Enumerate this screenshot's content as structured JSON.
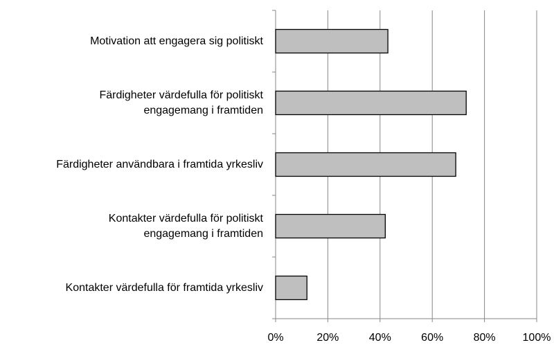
{
  "chart_data": {
    "type": "barh",
    "categories": [
      "Motivation att engagera sig politiskt",
      "Färdigheter värdefulla för politiskt\nengagemang i framtiden",
      "Färdigheter användbara i framtida yrkesliv",
      "Kontakter värdefulla för politiskt\nengagemang i framtiden",
      "Kontakter värdefulla för framtida yrkesliv"
    ],
    "values": [
      43,
      73,
      69,
      42,
      12
    ],
    "color": "#bfbfbf",
    "xlim": [
      0,
      100
    ],
    "xticks": [
      {
        "value": 0,
        "label": "0%"
      },
      {
        "value": 20,
        "label": "20%"
      },
      {
        "value": 40,
        "label": "40%"
      },
      {
        "value": 60,
        "label": "60%"
      },
      {
        "value": 80,
        "label": "80%"
      },
      {
        "value": 100,
        "label": "100%"
      }
    ],
    "grid": true
  }
}
